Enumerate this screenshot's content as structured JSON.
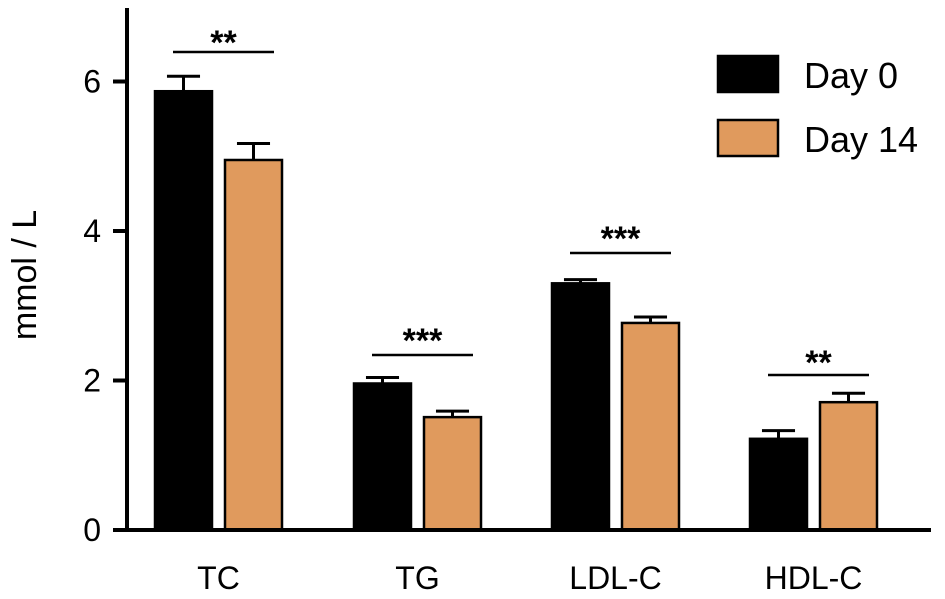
{
  "chart_data": {
    "type": "bar",
    "ylabel": "mmol / L",
    "xlabel": "",
    "ylim": [
      0,
      7
    ],
    "yticks": [
      0,
      2,
      4,
      6
    ],
    "categories": [
      "TC",
      "TG",
      "LDL-C",
      "HDL-C"
    ],
    "series": [
      {
        "name": "Day 0",
        "color": "#000000",
        "values": [
          5.87,
          1.96,
          3.3,
          1.22
        ],
        "errors": [
          0.2,
          0.08,
          0.05,
          0.11
        ]
      },
      {
        "name": "Day 14",
        "color": "#E09A5D",
        "values": [
          4.95,
          1.51,
          2.77,
          1.71
        ],
        "errors": [
          0.22,
          0.08,
          0.08,
          0.12
        ]
      }
    ],
    "significance": [
      "**",
      "***",
      "***",
      "**"
    ],
    "legend_position": "top-right"
  }
}
